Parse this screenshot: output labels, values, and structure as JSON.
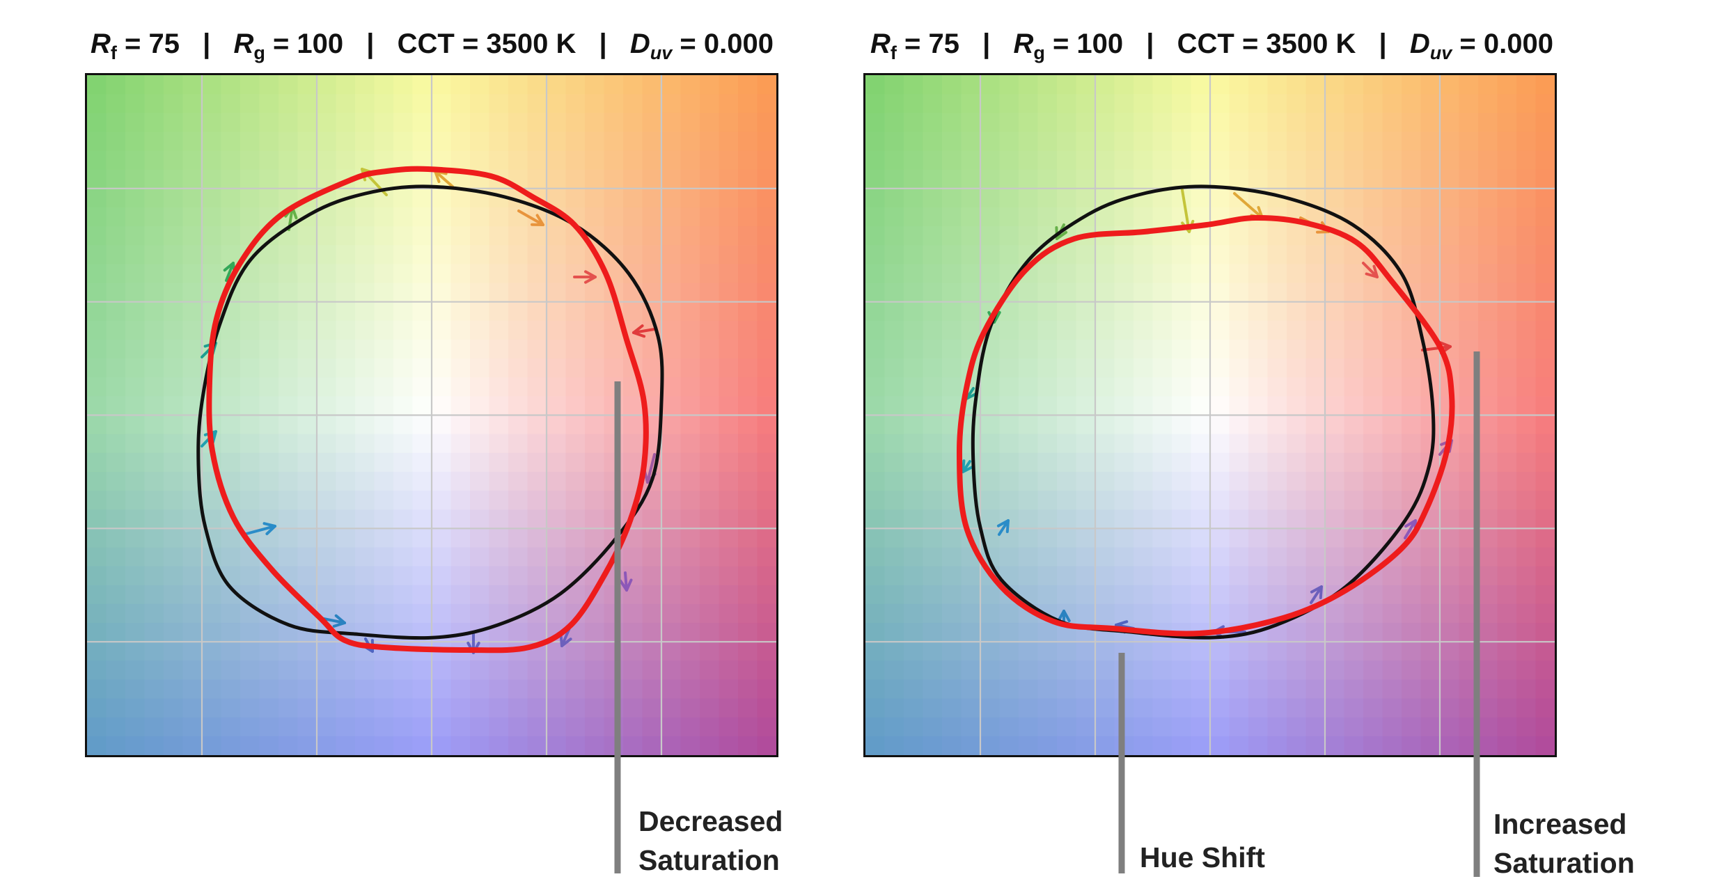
{
  "panels": [
    {
      "id": "left",
      "title": {
        "rf_symbol": "R",
        "rf_sub": "f",
        "rf_value": "= 75",
        "rg_symbol": "R",
        "rg_sub": "g",
        "rg_value": "= 100",
        "cct": "CCT = 3500 K",
        "duv_symbol": "D",
        "duv_sub": "uv",
        "duv_value": "= 0.000",
        "separator": "|"
      },
      "callouts": [
        {
          "line1": "Decreased",
          "line2": "Saturation"
        }
      ]
    },
    {
      "id": "right",
      "title": {
        "rf_symbol": "R",
        "rf_sub": "f",
        "rf_value": "= 75",
        "rg_symbol": "R",
        "rg_sub": "g",
        "rg_value": "= 100",
        "cct": "CCT = 3500 K",
        "duv_symbol": "D",
        "duv_sub": "uv",
        "duv_value": "= 0.000",
        "separator": "|"
      },
      "callouts": [
        {
          "line1": "Hue Shift",
          "line2": ""
        },
        {
          "line1": "Increased",
          "line2": "Saturation"
        }
      ]
    }
  ],
  "colors": {
    "reference_curve": "#111111",
    "test_curve": "#ee1c1c",
    "grid": "#c8c8c8",
    "callout_line": "#7f7f7f",
    "corner_top_left": "#7ed26e",
    "corner_top_center": "#fafaa0",
    "corner_top_right": "#fb9a52",
    "corner_middle_left": "#9ad8a8",
    "corner_center": "#ffffff",
    "corner_middle_right": "#f77a7a",
    "corner_bottom_left": "#5f9ac8",
    "corner_bottom_center": "#9a9cf8",
    "corner_bottom_right": "#b0489a"
  }
}
